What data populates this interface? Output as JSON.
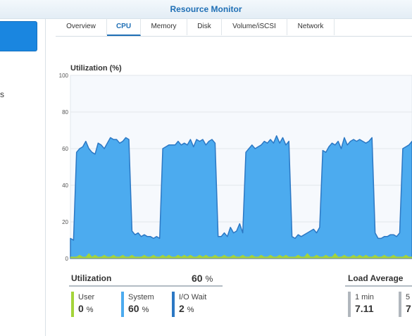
{
  "window": {
    "title": "Resource Monitor"
  },
  "sidebar": {
    "partial_label": "s"
  },
  "tabs": [
    {
      "label": "Overview",
      "active": false
    },
    {
      "label": "CPU",
      "active": true
    },
    {
      "label": "Memory",
      "active": false
    },
    {
      "label": "Disk",
      "active": false
    },
    {
      "label": "Volume/iSCSI",
      "active": false
    },
    {
      "label": "Network",
      "active": false
    }
  ],
  "colors": {
    "user": "#a4d43a",
    "system": "#4cabef",
    "io_wait": "#2c78c4",
    "accent": "#1f6fb5"
  },
  "chart_data": {
    "type": "area",
    "title": "Utilization (%)",
    "ylim": [
      0,
      100
    ],
    "yticks": [
      0,
      20,
      40,
      60,
      80,
      100
    ],
    "grid": true,
    "series": [
      {
        "name": "System",
        "values": [
          11,
          10,
          58,
          60,
          61,
          64,
          60,
          58,
          57,
          63,
          62,
          60,
          63,
          66,
          65,
          65,
          63,
          64,
          66,
          65,
          15,
          13,
          14,
          12,
          13,
          12,
          12,
          11,
          12,
          11,
          60,
          61,
          62,
          62,
          62,
          64,
          62,
          63,
          62,
          65,
          61,
          65,
          64,
          65,
          62,
          64,
          65,
          63,
          12,
          12,
          14,
          12,
          17,
          14,
          15,
          19,
          14,
          58,
          60,
          62,
          60,
          61,
          62,
          64,
          63,
          65,
          63,
          67,
          63,
          66,
          62,
          64,
          12,
          11,
          13,
          12,
          13,
          14,
          15,
          16,
          14,
          17,
          59,
          58,
          61,
          63,
          62,
          64,
          60,
          66,
          62,
          64,
          65,
          64,
          65,
          64,
          63,
          64,
          66,
          14,
          11,
          11,
          12,
          12,
          13,
          13,
          12,
          14,
          60,
          61,
          62,
          64
        ]
      },
      {
        "name": "User",
        "values": [
          1,
          1,
          1,
          2,
          1,
          1,
          3,
          1,
          2,
          1,
          1,
          2,
          1,
          1,
          2,
          1,
          1,
          2,
          1,
          1,
          2,
          1,
          1,
          1,
          2,
          1,
          1,
          2,
          1,
          1,
          2,
          1,
          2,
          1,
          1,
          2,
          1,
          2,
          1,
          2,
          1,
          1,
          2,
          1,
          2,
          1,
          1,
          2,
          1,
          1,
          2,
          1,
          1,
          2,
          1,
          1,
          2,
          1,
          1,
          2,
          1,
          1,
          2,
          1,
          1,
          2,
          1,
          1,
          2,
          1,
          2,
          1,
          1,
          1,
          2,
          1,
          1,
          3,
          1,
          1,
          2,
          1,
          1,
          2,
          1,
          1,
          3,
          1,
          1,
          2,
          1,
          1,
          2,
          1,
          2,
          1,
          2,
          1,
          1,
          2,
          1,
          1,
          2,
          1,
          1,
          2,
          1,
          1,
          1,
          2,
          1,
          1,
          2
        ]
      }
    ]
  },
  "utilization": {
    "title": "Utilization",
    "total": "60",
    "total_unit": "%",
    "metrics": [
      {
        "label": "User",
        "value": "0",
        "unit": "%"
      },
      {
        "label": "System",
        "value": "60",
        "unit": "%"
      },
      {
        "label": "I/O Wait",
        "value": "2",
        "unit": "%"
      }
    ]
  },
  "load_average": {
    "title": "Load Average",
    "items": [
      {
        "label": "1 min",
        "value": "7.11"
      },
      {
        "label": "5",
        "value": "7"
      }
    ]
  }
}
